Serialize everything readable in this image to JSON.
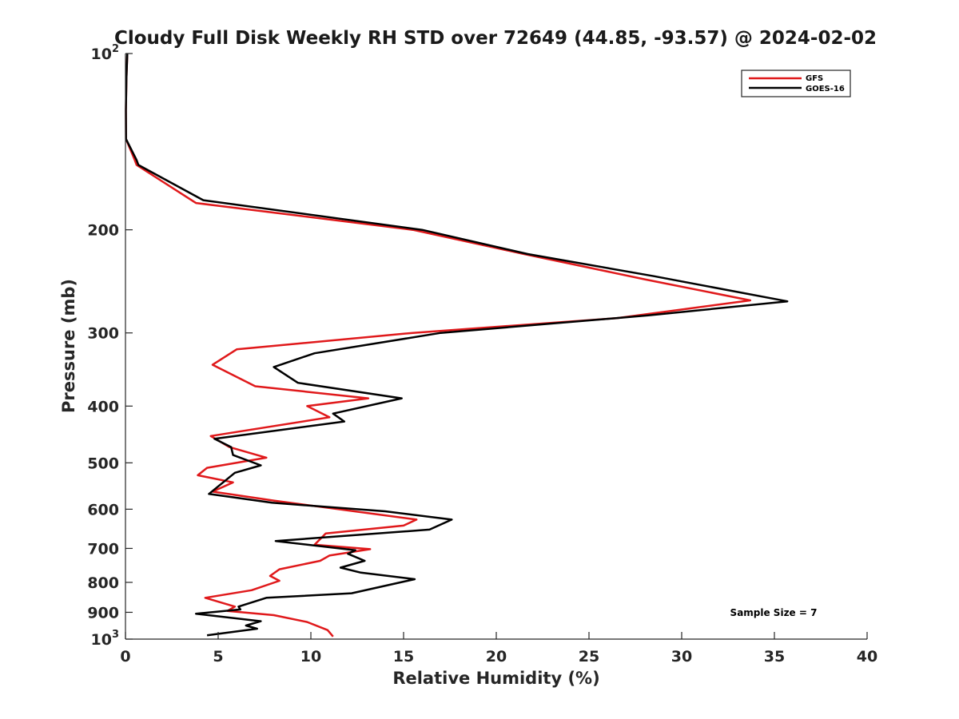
{
  "chart_data": {
    "type": "line",
    "title": "Cloudy Full Disk Weekly RH STD over 72649 (44.85, -93.57) @ 2024-02-02",
    "xlabel": "Relative Humidity (%)",
    "ylabel": "Pressure (mb)",
    "xlim": [
      0,
      40
    ],
    "ylim": [
      100,
      1000
    ],
    "y_scale": "log",
    "y_reversed": true,
    "x_ticks": [
      0,
      5,
      10,
      15,
      20,
      25,
      30,
      35,
      40
    ],
    "x_tick_labels": [
      "0",
      "5",
      "10",
      "15",
      "20",
      "25",
      "30",
      "35",
      "40"
    ],
    "y_ticks": [
      100,
      200,
      300,
      400,
      500,
      600,
      700,
      800,
      900,
      1000
    ],
    "y_tick_labels": [
      {
        "base": "10",
        "exp": "2"
      },
      {
        "base": "200",
        "exp": ""
      },
      {
        "base": "300",
        "exp": ""
      },
      {
        "base": "400",
        "exp": ""
      },
      {
        "base": "500",
        "exp": ""
      },
      {
        "base": "600",
        "exp": ""
      },
      {
        "base": "700",
        "exp": ""
      },
      {
        "base": "800",
        "exp": ""
      },
      {
        "base": "900",
        "exp": ""
      },
      {
        "base": "10",
        "exp": "3"
      }
    ],
    "legend_position": "top-right",
    "annotation": "Sample Size = 7",
    "series": [
      {
        "name": "GFS",
        "color": "#e0191b",
        "points": [
          [
            0.1,
            100
          ],
          [
            0.05,
            110
          ],
          [
            0.02,
            125
          ],
          [
            0.03,
            140
          ],
          [
            0.5,
            152
          ],
          [
            0.6,
            155
          ],
          [
            3.8,
            180
          ],
          [
            15.5,
            200
          ],
          [
            21.5,
            220
          ],
          [
            28,
            243
          ],
          [
            33.7,
            264
          ],
          [
            26.5,
            283
          ],
          [
            15.5,
            300
          ],
          [
            6.0,
            320
          ],
          [
            4.7,
            340
          ],
          [
            7.0,
            370
          ],
          [
            13.1,
            388
          ],
          [
            9.8,
            400
          ],
          [
            11.0,
            418
          ],
          [
            4.6,
            450
          ],
          [
            5.6,
            470
          ],
          [
            7.6,
            490
          ],
          [
            4.4,
            510
          ],
          [
            3.9,
            525
          ],
          [
            5.8,
            540
          ],
          [
            4.7,
            560
          ],
          [
            8.0,
            580
          ],
          [
            11.5,
            600
          ],
          [
            15.7,
            625
          ],
          [
            15.0,
            640
          ],
          [
            10.8,
            660
          ],
          [
            10.2,
            690
          ],
          [
            13.2,
            702
          ],
          [
            11.0,
            720
          ],
          [
            10.5,
            735
          ],
          [
            8.3,
            760
          ],
          [
            7.8,
            780
          ],
          [
            8.3,
            795
          ],
          [
            6.8,
            825
          ],
          [
            4.3,
            850
          ],
          [
            5.9,
            880
          ],
          [
            5.5,
            895
          ],
          [
            8.0,
            910
          ],
          [
            9.8,
            935
          ],
          [
            10.9,
            965
          ],
          [
            11.2,
            990
          ]
        ]
      },
      {
        "name": "GOES-16",
        "color": "#000000",
        "points": [
          [
            0.1,
            100
          ],
          [
            0.05,
            110
          ],
          [
            0.02,
            125
          ],
          [
            0.03,
            140
          ],
          [
            0.6,
            152
          ],
          [
            0.7,
            155
          ],
          [
            4.2,
            178
          ],
          [
            16.0,
            200
          ],
          [
            21.7,
            220
          ],
          [
            28.5,
            240
          ],
          [
            35.7,
            265
          ],
          [
            28.2,
            280
          ],
          [
            17.0,
            300
          ],
          [
            10.2,
            325
          ],
          [
            8.0,
            343
          ],
          [
            9.3,
            365
          ],
          [
            14.9,
            388
          ],
          [
            11.2,
            412
          ],
          [
            11.8,
            425
          ],
          [
            4.8,
            455
          ],
          [
            5.7,
            470
          ],
          [
            5.8,
            485
          ],
          [
            7.3,
            505
          ],
          [
            5.9,
            520
          ],
          [
            4.5,
            565
          ],
          [
            7.9,
            585
          ],
          [
            14.0,
            605
          ],
          [
            17.6,
            625
          ],
          [
            16.4,
            650
          ],
          [
            8.1,
            680
          ],
          [
            12.4,
            705
          ],
          [
            12.0,
            715
          ],
          [
            12.9,
            735
          ],
          [
            11.6,
            755
          ],
          [
            12.7,
            770
          ],
          [
            15.6,
            790
          ],
          [
            12.2,
            835
          ],
          [
            7.6,
            850
          ],
          [
            6.1,
            880
          ],
          [
            6.2,
            890
          ],
          [
            3.8,
            905
          ],
          [
            7.3,
            932
          ],
          [
            6.5,
            948
          ],
          [
            7.1,
            960
          ],
          [
            4.4,
            985
          ]
        ]
      }
    ]
  }
}
